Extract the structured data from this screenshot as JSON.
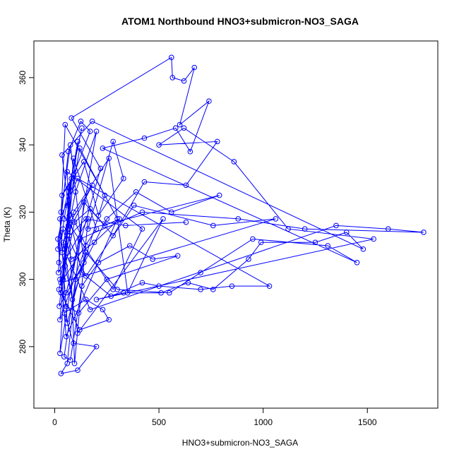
{
  "chart_data": {
    "type": "line",
    "markers": "open-circle",
    "color": "#0000ff",
    "title": "ATOM1 Northbound HNO3+submicron-NO3_SAGA",
    "x_label": "HNO3+submicron-NO3_SAGA",
    "y_label": "Theta (K)",
    "xlim": [
      -100,
      1838
    ],
    "ylim": [
      261.7,
      370.9
    ],
    "xticks": [
      0,
      500,
      1000,
      1500
    ],
    "yticks": [
      280,
      300,
      320,
      340,
      360
    ],
    "x": [
      20,
      45,
      80,
      30,
      110,
      60,
      150,
      25,
      90,
      200,
      40,
      70,
      130,
      15,
      55,
      300,
      120,
      35,
      85,
      240,
      50,
      18,
      160,
      95,
      60,
      420,
      280,
      30,
      75,
      140,
      22,
      65,
      180,
      40,
      110,
      520,
      350,
      260,
      90,
      30,
      1060,
      760,
      380,
      150,
      60,
      25,
      200,
      100,
      45,
      170,
      1350,
      1600,
      1770,
      1200,
      880,
      420,
      120,
      55,
      220,
      80,
      560,
      565,
      620,
      670,
      600,
      740,
      650,
      580,
      430,
      230,
      1450,
      1310,
      950,
      700,
      550,
      300,
      150,
      60,
      25,
      110,
      1030,
      850,
      700,
      500,
      420,
      270,
      130,
      70,
      35,
      180,
      1480,
      1400,
      1250,
      990,
      930,
      760,
      640,
      510,
      330,
      200,
      1530,
      1120,
      860,
      620,
      500,
      780,
      630,
      430,
      280,
      140,
      60,
      30,
      110,
      200,
      90,
      45,
      150,
      230,
      260,
      120,
      20,
      50,
      95,
      170,
      240,
      310,
      190,
      80,
      40,
      15,
      65,
      125,
      170,
      90,
      35,
      140,
      210,
      330,
      280,
      160,
      790,
      560,
      390,
      250,
      100,
      45,
      75,
      130,
      210,
      360,
      470,
      590,
      250,
      115,
      55,
      25,
      70,
      150,
      340,
      630
    ],
    "y": [
      305,
      318,
      330,
      296,
      341,
      322,
      310,
      288,
      336,
      315,
      300,
      327,
      345,
      312,
      283,
      318,
      339,
      308,
      294,
      325,
      346,
      302,
      318,
      275,
      332,
      315,
      297,
      320,
      340,
      305,
      292,
      316,
      328,
      311,
      284,
      318,
      296,
      336,
      320,
      299,
      318,
      316,
      322,
      301,
      313,
      278,
      344,
      326,
      309,
      291,
      316,
      315,
      314,
      315,
      318,
      320,
      312,
      296,
      333,
      348,
      366,
      360,
      359,
      363,
      346,
      353,
      338,
      345,
      342,
      339,
      305,
      310,
      312,
      302,
      296,
      297,
      308,
      287,
      318,
      330,
      298,
      298,
      297,
      298,
      299,
      295,
      302,
      319,
      337,
      347,
      309,
      314,
      311,
      311,
      306,
      297,
      299,
      296,
      296,
      294,
      312,
      315,
      335,
      345,
      340,
      341,
      328,
      329,
      313,
      323,
      275,
      272,
      273,
      280,
      281,
      290,
      294,
      291,
      288,
      285,
      297,
      304,
      317,
      321,
      316,
      318,
      311,
      306,
      315,
      309,
      338,
      347,
      344,
      331,
      325,
      335,
      319,
      330,
      341,
      315,
      325,
      320,
      326,
      318,
      300,
      277,
      276,
      298,
      305,
      310,
      306,
      307,
      300,
      290,
      292,
      300,
      313,
      318,
      316,
      317
    ]
  }
}
